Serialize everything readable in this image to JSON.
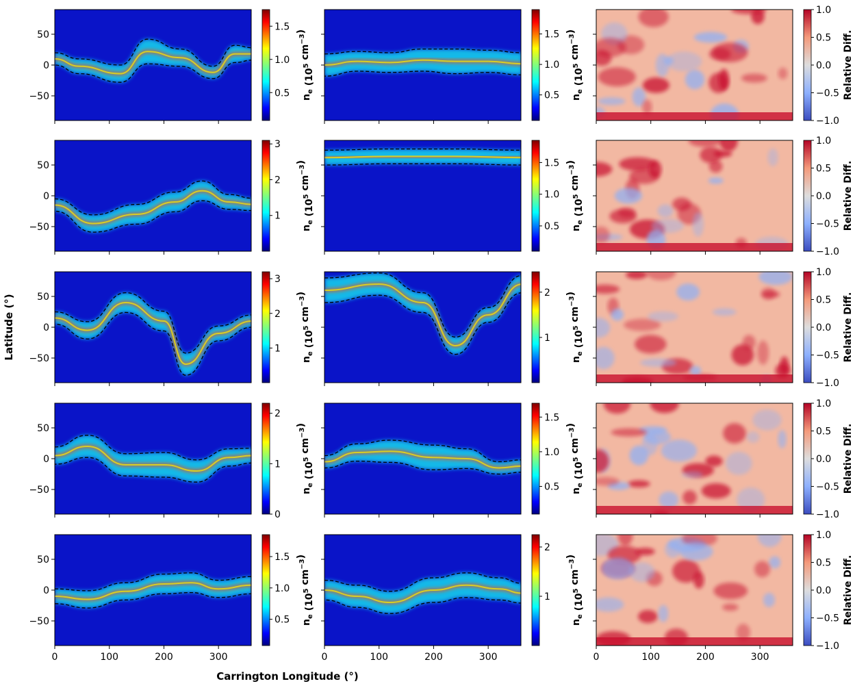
{
  "chart_data": {
    "type": "heatmap",
    "layout": {
      "rows": 5,
      "cols": 3
    },
    "xlabel": "Carrington Longitude (°)",
    "ylabel": "Latitude (°)",
    "xlim": [
      0,
      360
    ],
    "ylim": [
      -90,
      90
    ],
    "xticks": [
      0,
      100,
      200,
      300
    ],
    "yticks": [
      50,
      0,
      -50
    ],
    "xtick_labels": [
      "0",
      "100",
      "200",
      "300"
    ],
    "ytick_labels": [
      "50",
      "0",
      "−50"
    ],
    "colorbar_label_ne": "n_e (10^5 cm^-3)",
    "colorbar_label_diff": "Relative Diff.",
    "colormaps": {
      "density": "jet",
      "difference": "coolwarm (blue-white-red)"
    },
    "contour": {
      "style": "dashed",
      "color": "#000000"
    },
    "panels": [
      [
        {
          "kind": "ne",
          "cbar_range": [
            0.08,
            1.75
          ],
          "cbar_ticks": [
            0.5,
            1.0,
            1.5
          ],
          "cbar_tick_labels": [
            "0.5",
            "1.0",
            "1.5"
          ],
          "bands": [
            [
              0,
              10,
              10
            ],
            [
              45,
              12,
              -2
            ],
            [
              120,
              14,
              -14
            ],
            [
              170,
              20,
              22
            ],
            [
              230,
              14,
              12
            ],
            [
              290,
              10,
              -12
            ],
            [
              330,
              14,
              18
            ],
            [
              362,
              10,
              18
            ]
          ]
        },
        {
          "kind": "ne",
          "cbar_range": [
            0.08,
            1.9
          ],
          "cbar_ticks": [
            0.5,
            1.0,
            1.5
          ],
          "cbar_tick_labels": [
            "0.5",
            "1.0",
            "1.5"
          ],
          "bands": [
            [
              0,
              18,
              0
            ],
            [
              60,
              16,
              6
            ],
            [
              120,
              16,
              4
            ],
            [
              180,
              18,
              8
            ],
            [
              240,
              20,
              6
            ],
            [
              300,
              18,
              6
            ],
            [
              362,
              18,
              2
            ]
          ]
        },
        {
          "kind": "diff",
          "cbar_range": [
            -1.0,
            1.0
          ],
          "cbar_ticks": [
            1.0,
            0.5,
            0.0,
            -0.5,
            -1.0
          ],
          "cbar_tick_labels": [
            "1.0",
            "0.5",
            "0.0",
            "−0.5",
            "−1.0"
          ]
        }
      ],
      [
        {
          "kind": "ne",
          "cbar_range": [
            0.0,
            3.1
          ],
          "cbar_ticks": [
            1,
            2,
            3
          ],
          "cbar_tick_labels": [
            "1",
            "2",
            "3"
          ],
          "bands": [
            [
              0,
              10,
              -15
            ],
            [
              70,
              14,
              -45
            ],
            [
              150,
              16,
              -30
            ],
            [
              220,
              16,
              -10
            ],
            [
              270,
              16,
              8
            ],
            [
              320,
              12,
              -10
            ],
            [
              362,
              10,
              -14
            ]
          ]
        },
        {
          "kind": "ne",
          "cbar_range": [
            0.1,
            1.85
          ],
          "cbar_ticks": [
            0.5,
            1.0,
            1.5
          ],
          "cbar_tick_labels": [
            "0.5",
            "1.0",
            "1.5"
          ],
          "bands": [
            [
              0,
              12,
              62
            ],
            [
              120,
              12,
              64
            ],
            [
              240,
              12,
              64
            ],
            [
              362,
              12,
              62
            ]
          ]
        },
        {
          "kind": "diff",
          "cbar_range": [
            -1.0,
            1.0
          ],
          "cbar_ticks": [
            1.0,
            0.5,
            0.0,
            -0.5,
            -1.0
          ],
          "cbar_tick_labels": [
            "1.0",
            "0.5",
            "0.0",
            "−0.5",
            "−1.0"
          ]
        }
      ],
      [
        {
          "kind": "ne",
          "cbar_range": [
            0.0,
            3.2
          ],
          "cbar_ticks": [
            1,
            2,
            3
          ],
          "cbar_tick_labels": [
            "1",
            "2",
            "3"
          ],
          "bands": [
            [
              0,
              10,
              15
            ],
            [
              60,
              14,
              -5
            ],
            [
              130,
              16,
              40
            ],
            [
              200,
              16,
              10
            ],
            [
              240,
              18,
              -60
            ],
            [
              300,
              12,
              -10
            ],
            [
              362,
              10,
              10
            ]
          ]
        },
        {
          "kind": "ne",
          "cbar_range": [
            0.0,
            2.45
          ],
          "cbar_ticks": [
            1,
            2
          ],
          "cbar_tick_labels": [
            "1",
            "2"
          ],
          "bands": [
            [
              0,
              20,
              60
            ],
            [
              100,
              18,
              70
            ],
            [
              180,
              16,
              40
            ],
            [
              240,
              14,
              -30
            ],
            [
              300,
              12,
              20
            ],
            [
              362,
              14,
              70
            ]
          ]
        },
        {
          "kind": "diff",
          "cbar_range": [
            -1.0,
            1.0
          ],
          "cbar_ticks": [
            1.0,
            0.5,
            0.0,
            -0.5,
            -1.0
          ],
          "cbar_tick_labels": [
            "1.0",
            "0.5",
            "0.0",
            "−0.5",
            "−1.0"
          ]
        }
      ],
      [
        {
          "kind": "ne",
          "cbar_range": [
            0.0,
            2.2
          ],
          "cbar_ticks": [
            0,
            1,
            2
          ],
          "cbar_tick_labels": [
            "0",
            "1",
            "2"
          ],
          "bands": [
            [
              0,
              14,
              5
            ],
            [
              60,
              18,
              20
            ],
            [
              130,
              18,
              -10
            ],
            [
              200,
              20,
              -10
            ],
            [
              260,
              18,
              -20
            ],
            [
              320,
              14,
              2
            ],
            [
              362,
              12,
              5
            ]
          ]
        },
        {
          "kind": "ne",
          "cbar_range": [
            0.1,
            1.7
          ],
          "cbar_ticks": [
            0.5,
            1.0,
            1.5
          ],
          "cbar_tick_labels": [
            "0.5",
            "1.0",
            "1.5"
          ],
          "bands": [
            [
              0,
              10,
              -5
            ],
            [
              60,
              14,
              10
            ],
            [
              120,
              18,
              12
            ],
            [
              200,
              20,
              2
            ],
            [
              260,
              16,
              0
            ],
            [
              320,
              10,
              -15
            ],
            [
              362,
              10,
              -12
            ]
          ]
        },
        {
          "kind": "diff",
          "cbar_range": [
            -1.0,
            1.0
          ],
          "cbar_ticks": [
            1.0,
            0.5,
            0.0,
            -0.5,
            -1.0
          ],
          "cbar_tick_labels": [
            "1.0",
            "0.5",
            "0.0",
            "−0.5",
            "−1.0"
          ]
        }
      ],
      [
        {
          "kind": "ne",
          "cbar_range": [
            0.08,
            1.85
          ],
          "cbar_ticks": [
            0.5,
            1.0,
            1.5
          ],
          "cbar_tick_labels": [
            "0.5",
            "1.0",
            "1.5"
          ],
          "bands": [
            [
              0,
              12,
              -10
            ],
            [
              60,
              14,
              -15
            ],
            [
              130,
              14,
              -2
            ],
            [
              200,
              16,
              10
            ],
            [
              250,
              16,
              12
            ],
            [
              300,
              14,
              2
            ],
            [
              362,
              14,
              8
            ]
          ]
        },
        {
          "kind": "ne",
          "cbar_range": [
            0.0,
            2.25
          ],
          "cbar_ticks": [
            1,
            2
          ],
          "cbar_tick_labels": [
            "1",
            "2"
          ],
          "bands": [
            [
              0,
              16,
              0
            ],
            [
              60,
              18,
              -10
            ],
            [
              120,
              18,
              -20
            ],
            [
              200,
              20,
              0
            ],
            [
              260,
              20,
              8
            ],
            [
              320,
              18,
              2
            ],
            [
              362,
              16,
              -5
            ]
          ]
        },
        {
          "kind": "diff",
          "cbar_range": [
            -1.0,
            1.0
          ],
          "cbar_ticks": [
            1.0,
            0.5,
            0.0,
            -0.5,
            -1.0
          ],
          "cbar_tick_labels": [
            "1.0",
            "0.5",
            "0.0",
            "−0.5",
            "−1.0"
          ]
        }
      ]
    ]
  }
}
